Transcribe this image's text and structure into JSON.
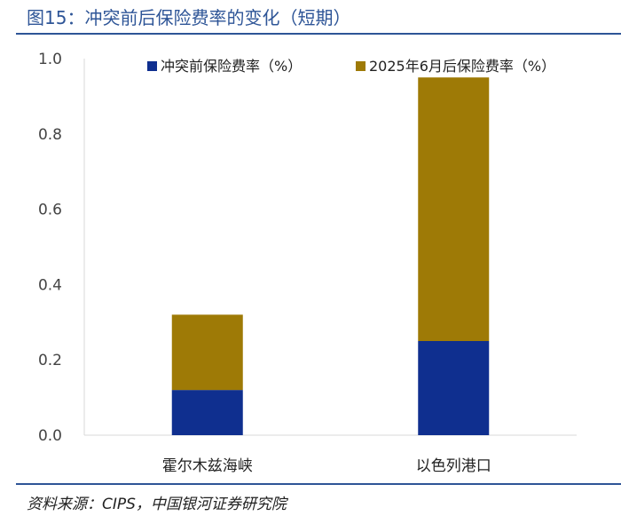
{
  "title": "图15：冲突前后保险费率的变化（短期）",
  "source": "资料来源：CIPS，中国银河证券研究院",
  "chart_data": {
    "type": "bar",
    "stacked": true,
    "categories": [
      "霍尔木兹海峡",
      "以色列港口"
    ],
    "series": [
      {
        "name": "冲突前保险费率（%）",
        "values": [
          0.12,
          0.25
        ],
        "color": "#0f2f8f"
      },
      {
        "name": "2025年6月后保险费率（%）",
        "values": [
          0.2,
          0.7
        ],
        "color": "#9e7a06"
      }
    ],
    "ylim": [
      0,
      1.0
    ],
    "yticks": [
      "0.0",
      "0.2",
      "0.4",
      "0.6",
      "0.8",
      "1.0"
    ],
    "legend_position": "top",
    "grid": false
  }
}
